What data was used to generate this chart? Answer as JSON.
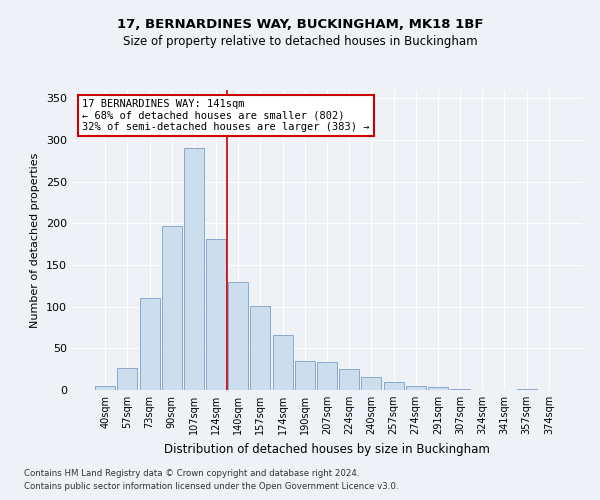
{
  "title1": "17, BERNARDINES WAY, BUCKINGHAM, MK18 1BF",
  "title2": "Size of property relative to detached houses in Buckingham",
  "xlabel": "Distribution of detached houses by size in Buckingham",
  "ylabel": "Number of detached properties",
  "categories": [
    "40sqm",
    "57sqm",
    "73sqm",
    "90sqm",
    "107sqm",
    "124sqm",
    "140sqm",
    "157sqm",
    "174sqm",
    "190sqm",
    "207sqm",
    "224sqm",
    "240sqm",
    "257sqm",
    "274sqm",
    "291sqm",
    "307sqm",
    "324sqm",
    "341sqm",
    "357sqm",
    "374sqm"
  ],
  "values": [
    5,
    27,
    110,
    197,
    290,
    181,
    130,
    101,
    66,
    35,
    34,
    25,
    16,
    10,
    5,
    4,
    1,
    0,
    0,
    1,
    0
  ],
  "bar_color": "#ccdded",
  "bar_edge_color": "#88aacc",
  "vline_x": 5.5,
  "vline_color": "#cc0000",
  "annotation_text": "17 BERNARDINES WAY: 141sqm\n← 68% of detached houses are smaller (802)\n32% of semi-detached houses are larger (383) →",
  "annotation_box_color": "#ffffff",
  "annotation_box_edge": "#cc0000",
  "footnote1": "Contains HM Land Registry data © Crown copyright and database right 2024.",
  "footnote2": "Contains public sector information licensed under the Open Government Licence v3.0.",
  "bg_color": "#eef2f7",
  "grid_color": "#ffffff",
  "ylim": [
    0,
    360
  ],
  "yticks": [
    0,
    50,
    100,
    150,
    200,
    250,
    300,
    350
  ]
}
